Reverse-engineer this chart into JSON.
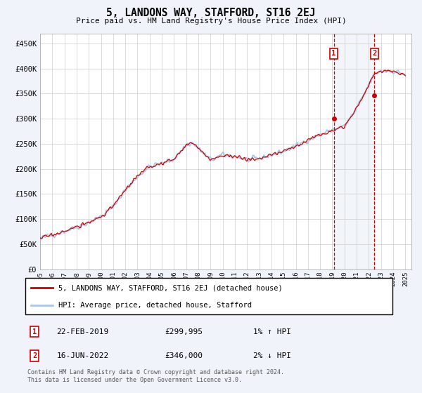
{
  "title": "5, LANDONS WAY, STAFFORD, ST16 2EJ",
  "subtitle": "Price paid vs. HM Land Registry's House Price Index (HPI)",
  "ylabel_ticks": [
    "£0",
    "£50K",
    "£100K",
    "£150K",
    "£200K",
    "£250K",
    "£300K",
    "£350K",
    "£400K",
    "£450K"
  ],
  "ytick_values": [
    0,
    50000,
    100000,
    150000,
    200000,
    250000,
    300000,
    350000,
    400000,
    450000
  ],
  "ylim": [
    0,
    470000
  ],
  "xlim_start": 1995.0,
  "xlim_end": 2025.5,
  "hpi_color": "#aec6e8",
  "price_color": "#cc0000",
  "background_color": "#f0f4fa",
  "plot_bg_color": "#ffffff",
  "marker1_x": 2019.12,
  "marker1_y": 299995,
  "marker2_x": 2022.46,
  "marker2_y": 346000,
  "marker1_label": "22-FEB-2019",
  "marker1_price": "£299,995",
  "marker1_hpi": "1% ↑ HPI",
  "marker2_label": "16-JUN-2022",
  "marker2_price": "£346,000",
  "marker2_hpi": "2% ↓ HPI",
  "legend_line1": "5, LANDONS WAY, STAFFORD, ST16 2EJ (detached house)",
  "legend_line2": "HPI: Average price, detached house, Stafford",
  "footnote": "Contains HM Land Registry data © Crown copyright and database right 2024.\nThis data is licensed under the Open Government Licence v3.0.",
  "xtick_years": [
    1995,
    1996,
    1997,
    1998,
    1999,
    2000,
    2001,
    2002,
    2003,
    2004,
    2005,
    2006,
    2007,
    2008,
    2009,
    2010,
    2011,
    2012,
    2013,
    2014,
    2015,
    2016,
    2017,
    2018,
    2019,
    2020,
    2021,
    2022,
    2023,
    2024,
    2025
  ],
  "num_points": 360,
  "hpi_base_points": [
    [
      1995.0,
      62000
    ],
    [
      1996.0,
      68000
    ],
    [
      1997.0,
      76000
    ],
    [
      1998.0,
      84000
    ],
    [
      1999.0,
      93000
    ],
    [
      2000.0,
      105000
    ],
    [
      2001.0,
      125000
    ],
    [
      2002.0,
      158000
    ],
    [
      2003.0,
      185000
    ],
    [
      2004.0,
      205000
    ],
    [
      2005.0,
      210000
    ],
    [
      2006.0,
      220000
    ],
    [
      2007.0,
      248000
    ],
    [
      2007.5,
      252000
    ],
    [
      2008.0,
      240000
    ],
    [
      2009.0,
      218000
    ],
    [
      2009.5,
      222000
    ],
    [
      2010.0,
      228000
    ],
    [
      2011.0,
      225000
    ],
    [
      2012.0,
      218000
    ],
    [
      2013.0,
      220000
    ],
    [
      2014.0,
      228000
    ],
    [
      2015.0,
      235000
    ],
    [
      2016.0,
      245000
    ],
    [
      2017.0,
      258000
    ],
    [
      2018.0,
      268000
    ],
    [
      2019.0,
      278000
    ],
    [
      2020.0,
      285000
    ],
    [
      2021.0,
      320000
    ],
    [
      2022.0,
      368000
    ],
    [
      2022.5,
      390000
    ],
    [
      2023.0,
      395000
    ],
    [
      2024.0,
      395000
    ],
    [
      2025.0,
      388000
    ]
  ],
  "noise_seed": 42,
  "noise_scale": 3500,
  "price_noise_seed": 17,
  "price_noise_scale": 2500
}
